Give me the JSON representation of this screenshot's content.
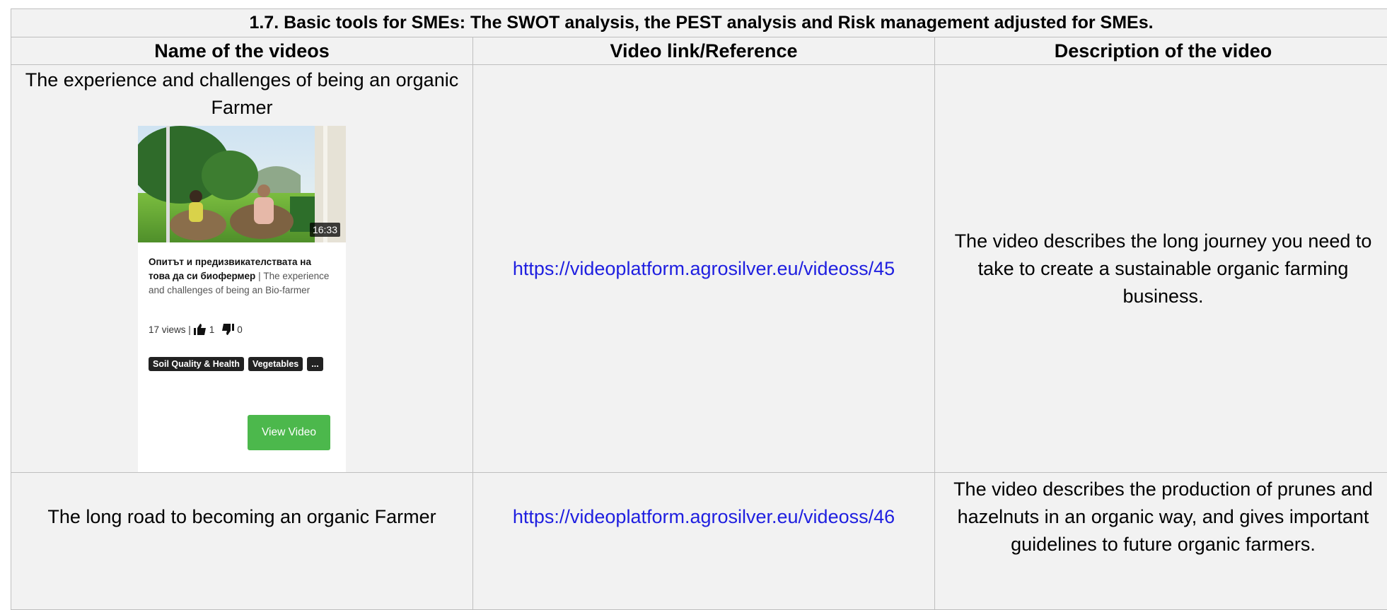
{
  "header": {
    "title": "1.7. Basic tools for SMEs: The SWOT analysis, the PEST analysis and Risk management adjusted for SMEs."
  },
  "table": {
    "headers": [
      "Name of the videos",
      "Video link/Reference",
      "Description of the video"
    ],
    "rows": [
      {
        "name": "The experience and challenges of being an organic Farmer",
        "link": "https://videoplatform.agrosilver.eu/videoss/45",
        "description": "The video describes the long journey you need to take to create a sustainable organic farming business.",
        "card": {
          "duration": "16:33",
          "title_bg": "Опитът и предизвикателствата на това да си биофермер",
          "title_en": "| The experience and challenges of being an Bio-farmer",
          "views": "17 views |",
          "likes": "1",
          "dislikes": "0",
          "tags": [
            "Soil Quality & Health",
            "Vegetables",
            "..."
          ],
          "button": "View Video"
        }
      },
      {
        "name": "The long road to becoming an organic Farmer",
        "link": "https://videoplatform.agrosilver.eu/videoss/46",
        "description": "The video describes the production of prunes and hazelnuts in an organic way, and gives important guidelines to future organic farmers."
      }
    ]
  }
}
